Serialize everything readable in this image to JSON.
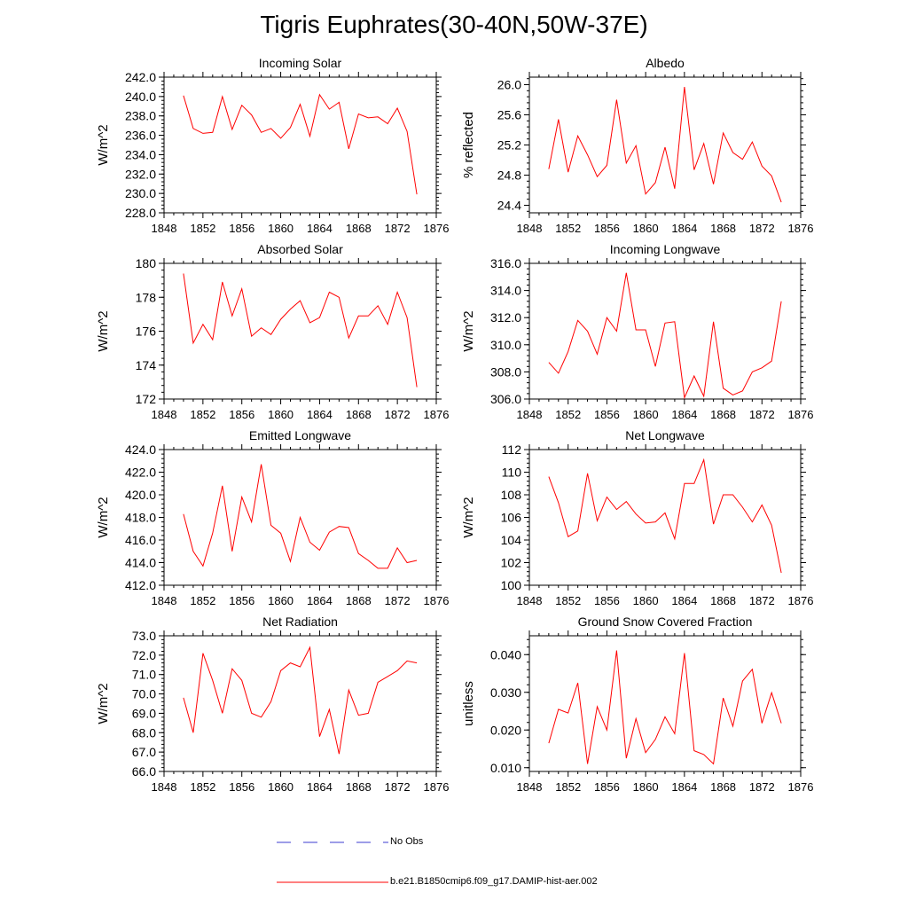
{
  "figure": {
    "title": "Tigris Euphrates(30-40N,50W-37E)"
  },
  "legend": [
    {
      "name": "No Obs",
      "color": "#3b3bd0",
      "style": "dashed"
    },
    {
      "name": "b.e21.B1850cmip6.f09_g17.DAMIP-hist-aer.002",
      "color": "#ff0000",
      "style": "solid"
    }
  ],
  "chart_data": [
    {
      "type": "line",
      "title": "Incoming Solar",
      "ylabel": "W/m^2",
      "xlabel": "",
      "xlim": [
        1848,
        1876
      ],
      "ylim": [
        228,
        242
      ],
      "xticks": [
        "1848",
        "1852",
        "1856",
        "1860",
        "1864",
        "1868",
        "1872",
        "1876"
      ],
      "yticks": [
        "228.0",
        "230.0",
        "232.0",
        "234.0",
        "236.0",
        "238.0",
        "240.0",
        "242.0"
      ],
      "x": [
        1850,
        1851,
        1852,
        1853,
        1854,
        1855,
        1856,
        1857,
        1858,
        1859,
        1860,
        1861,
        1862,
        1863,
        1864,
        1865,
        1866,
        1867,
        1868,
        1869,
        1870,
        1871,
        1872,
        1873,
        1874
      ],
      "series": [
        {
          "values": [
            240.1,
            236.7,
            236.2,
            236.3,
            240.0,
            236.6,
            239.1,
            238.1,
            236.3,
            236.7,
            235.7,
            236.8,
            239.2,
            235.9,
            240.2,
            238.7,
            239.4,
            234.6,
            238.2,
            237.8,
            237.9,
            237.2,
            238.8,
            236.4,
            229.9
          ]
        }
      ]
    },
    {
      "type": "line",
      "title": "Albedo",
      "ylabel": "% reflected",
      "xlabel": "",
      "xlim": [
        1848,
        1876
      ],
      "ylim": [
        24.3,
        26.1
      ],
      "xticks": [
        "1848",
        "1852",
        "1856",
        "1860",
        "1864",
        "1868",
        "1872",
        "1876"
      ],
      "yticks": [
        "24.4",
        "24.8",
        "25.2",
        "25.6",
        "26.0"
      ],
      "x": [
        1850,
        1851,
        1852,
        1853,
        1854,
        1855,
        1856,
        1857,
        1858,
        1859,
        1860,
        1861,
        1862,
        1863,
        1864,
        1865,
        1866,
        1867,
        1868,
        1869,
        1870,
        1871,
        1872,
        1873,
        1874
      ],
      "series": [
        {
          "values": [
            24.88,
            25.54,
            24.84,
            25.32,
            25.07,
            24.78,
            24.93,
            25.8,
            24.96,
            25.19,
            24.55,
            24.7,
            25.17,
            24.62,
            25.97,
            24.87,
            25.22,
            24.68,
            25.36,
            25.1,
            25.01,
            25.24,
            24.92,
            24.79,
            24.44
          ]
        }
      ]
    },
    {
      "type": "line",
      "title": "Absorbed Solar",
      "ylabel": "W/m^2",
      "xlabel": "",
      "xlim": [
        1848,
        1876
      ],
      "ylim": [
        172,
        180
      ],
      "xticks": [
        "1848",
        "1852",
        "1856",
        "1860",
        "1864",
        "1868",
        "1872",
        "1876"
      ],
      "yticks": [
        "172",
        "174",
        "176",
        "178",
        "180"
      ],
      "x": [
        1850,
        1851,
        1852,
        1853,
        1854,
        1855,
        1856,
        1857,
        1858,
        1859,
        1860,
        1861,
        1862,
        1863,
        1864,
        1865,
        1866,
        1867,
        1868,
        1869,
        1870,
        1871,
        1872,
        1873,
        1874
      ],
      "series": [
        {
          "values": [
            179.4,
            175.3,
            176.4,
            175.5,
            178.9,
            176.9,
            178.5,
            175.7,
            176.2,
            175.8,
            176.7,
            177.3,
            177.8,
            176.5,
            176.8,
            178.3,
            178.0,
            175.6,
            176.9,
            176.9,
            177.5,
            176.4,
            178.3,
            176.8,
            172.7
          ]
        }
      ]
    },
    {
      "type": "line",
      "title": "Incoming Longwave",
      "ylabel": "W/m^2",
      "xlabel": "",
      "xlim": [
        1848,
        1876
      ],
      "ylim": [
        306,
        316
      ],
      "xticks": [
        "1848",
        "1852",
        "1856",
        "1860",
        "1864",
        "1868",
        "1872",
        "1876"
      ],
      "yticks": [
        "306.0",
        "308.0",
        "310.0",
        "312.0",
        "314.0",
        "316.0"
      ],
      "x": [
        1850,
        1851,
        1852,
        1853,
        1854,
        1855,
        1856,
        1857,
        1858,
        1859,
        1860,
        1861,
        1862,
        1863,
        1864,
        1865,
        1866,
        1867,
        1868,
        1869,
        1870,
        1871,
        1872,
        1873,
        1874
      ],
      "series": [
        {
          "values": [
            308.7,
            307.9,
            309.5,
            311.8,
            311.0,
            309.3,
            312.0,
            311.0,
            315.3,
            311.1,
            311.1,
            308.4,
            311.6,
            311.7,
            306.1,
            307.7,
            306.2,
            311.7,
            306.8,
            306.3,
            306.6,
            308.0,
            308.3,
            308.8,
            313.2
          ]
        }
      ]
    },
    {
      "type": "line",
      "title": "Emitted Longwave",
      "ylabel": "W/m^2",
      "xlabel": "",
      "xlim": [
        1848,
        1876
      ],
      "ylim": [
        412,
        424
      ],
      "xticks": [
        "1848",
        "1852",
        "1856",
        "1860",
        "1864",
        "1868",
        "1872",
        "1876"
      ],
      "yticks": [
        "412.0",
        "414.0",
        "416.0",
        "418.0",
        "420.0",
        "422.0",
        "424.0"
      ],
      "x": [
        1850,
        1851,
        1852,
        1853,
        1854,
        1855,
        1856,
        1857,
        1858,
        1859,
        1860,
        1861,
        1862,
        1863,
        1864,
        1865,
        1866,
        1867,
        1868,
        1869,
        1870,
        1871,
        1872,
        1873,
        1874
      ],
      "series": [
        {
          "values": [
            418.3,
            415.0,
            413.7,
            416.6,
            420.8,
            415.0,
            419.8,
            417.6,
            422.7,
            417.3,
            416.6,
            414.1,
            418.0,
            415.8,
            415.1,
            416.7,
            417.2,
            417.1,
            414.8,
            414.2,
            413.5,
            413.5,
            415.3,
            414.0,
            414.2
          ]
        }
      ]
    },
    {
      "type": "line",
      "title": "Net Longwave",
      "ylabel": "W/m^2",
      "xlabel": "",
      "xlim": [
        1848,
        1876
      ],
      "ylim": [
        100,
        112
      ],
      "xticks": [
        "1848",
        "1852",
        "1856",
        "1860",
        "1864",
        "1868",
        "1872",
        "1876"
      ],
      "yticks": [
        "100",
        "102",
        "104",
        "106",
        "108",
        "110",
        "112"
      ],
      "x": [
        1850,
        1851,
        1852,
        1853,
        1854,
        1855,
        1856,
        1857,
        1858,
        1859,
        1860,
        1861,
        1862,
        1863,
        1864,
        1865,
        1866,
        1867,
        1868,
        1869,
        1870,
        1871,
        1872,
        1873,
        1874
      ],
      "series": [
        {
          "values": [
            109.6,
            107.3,
            104.3,
            104.8,
            109.9,
            105.7,
            107.8,
            106.7,
            107.4,
            106.3,
            105.5,
            105.6,
            106.4,
            104.1,
            109.0,
            109.0,
            111.1,
            105.4,
            108.0,
            108.0,
            106.9,
            105.6,
            107.1,
            105.3,
            101.1
          ]
        }
      ]
    },
    {
      "type": "line",
      "title": "Net Radiation",
      "ylabel": "W/m^2",
      "xlabel": "",
      "xlim": [
        1848,
        1876
      ],
      "ylim": [
        66,
        73
      ],
      "xticks": [
        "1848",
        "1852",
        "1856",
        "1860",
        "1864",
        "1868",
        "1872",
        "1876"
      ],
      "yticks": [
        "66.0",
        "67.0",
        "68.0",
        "69.0",
        "70.0",
        "71.0",
        "72.0",
        "73.0"
      ],
      "x": [
        1850,
        1851,
        1852,
        1853,
        1854,
        1855,
        1856,
        1857,
        1858,
        1859,
        1860,
        1861,
        1862,
        1863,
        1864,
        1865,
        1866,
        1867,
        1868,
        1869,
        1870,
        1871,
        1872,
        1873,
        1874
      ],
      "series": [
        {
          "values": [
            69.8,
            68.0,
            72.1,
            70.7,
            69.0,
            71.3,
            70.7,
            69.0,
            68.8,
            69.6,
            71.2,
            71.6,
            71.4,
            72.4,
            67.8,
            69.2,
            66.9,
            70.2,
            68.9,
            69.0,
            70.6,
            70.9,
            71.2,
            71.7,
            71.6
          ]
        }
      ]
    },
    {
      "type": "line",
      "title": "Ground Snow Covered Fraction",
      "ylabel": "unitless",
      "xlabel": "",
      "xlim": [
        1848,
        1876
      ],
      "ylim": [
        0.009,
        0.045
      ],
      "xticks": [
        "1848",
        "1852",
        "1856",
        "1860",
        "1864",
        "1868",
        "1872",
        "1876"
      ],
      "yticks": [
        "0.010",
        "0.020",
        "0.030",
        "0.040"
      ],
      "x": [
        1850,
        1851,
        1852,
        1853,
        1854,
        1855,
        1856,
        1857,
        1858,
        1859,
        1860,
        1861,
        1862,
        1863,
        1864,
        1865,
        1866,
        1867,
        1868,
        1869,
        1870,
        1871,
        1872,
        1873,
        1874
      ],
      "series": [
        {
          "values": [
            0.0165,
            0.0255,
            0.0245,
            0.0325,
            0.011,
            0.0262,
            0.02,
            0.0411,
            0.0125,
            0.023,
            0.014,
            0.0175,
            0.0235,
            0.019,
            0.0404,
            0.0145,
            0.0135,
            0.011,
            0.0285,
            0.021,
            0.033,
            0.0361,
            0.0218,
            0.0299,
            0.0218
          ]
        }
      ]
    }
  ]
}
